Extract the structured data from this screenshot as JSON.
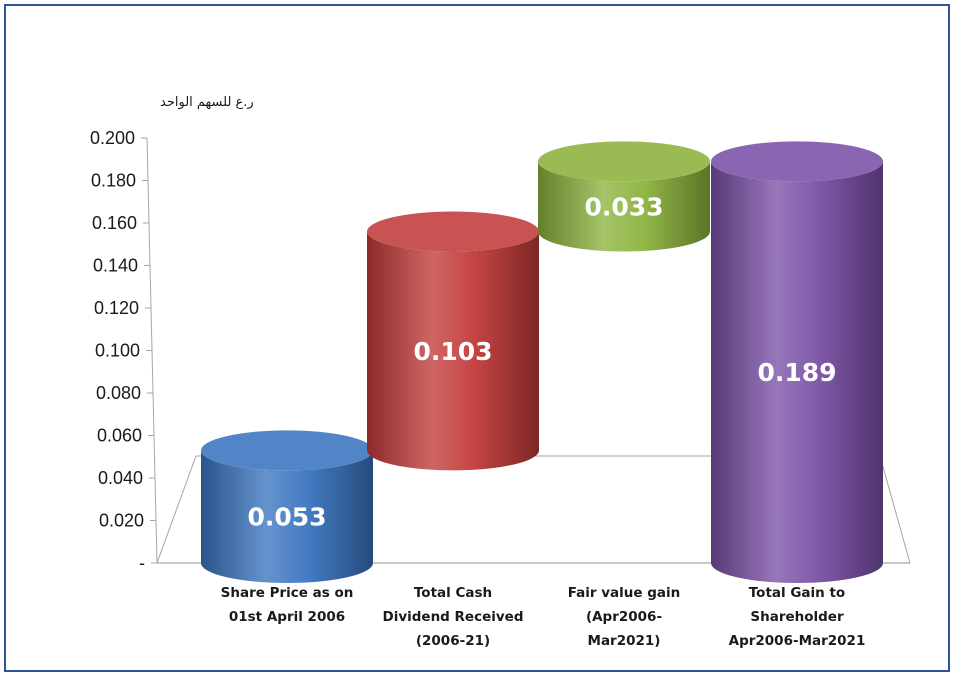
{
  "chart_data": {
    "type": "bar",
    "style": "waterfall-3d-cylinder",
    "title": "",
    "xlabel": "",
    "ylabel": "ر.ع للسهم الواحد",
    "ylim": [
      0,
      0.2
    ],
    "yticks": [
      "-",
      "0.020",
      "0.040",
      "0.060",
      "0.080",
      "0.100",
      "0.120",
      "0.140",
      "0.160",
      "0.180",
      "0.200"
    ],
    "grid": false,
    "legend": "none",
    "categories": [
      [
        "Share Price as on",
        "01st April 2006"
      ],
      [
        "Total Cash",
        "Dividend Received",
        "(2006-21)"
      ],
      [
        "Fair value gain",
        "(Apr2006-",
        "Mar2021)"
      ],
      [
        "Total Gain to",
        "Shareholder",
        "Apr2006-Mar2021"
      ]
    ],
    "bars": [
      {
        "label": "0.053",
        "value": 0.053,
        "base": 0,
        "color": "#3a74c0"
      },
      {
        "label": "0.103",
        "value": 0.103,
        "base": 0.053,
        "color": "#c23b3a"
      },
      {
        "label": "0.033",
        "value": 0.033,
        "base": 0.156,
        "color": "#8cb23d"
      },
      {
        "label": "0.189",
        "value": 0.189,
        "base": 0,
        "color": "#7a50a6"
      }
    ]
  }
}
